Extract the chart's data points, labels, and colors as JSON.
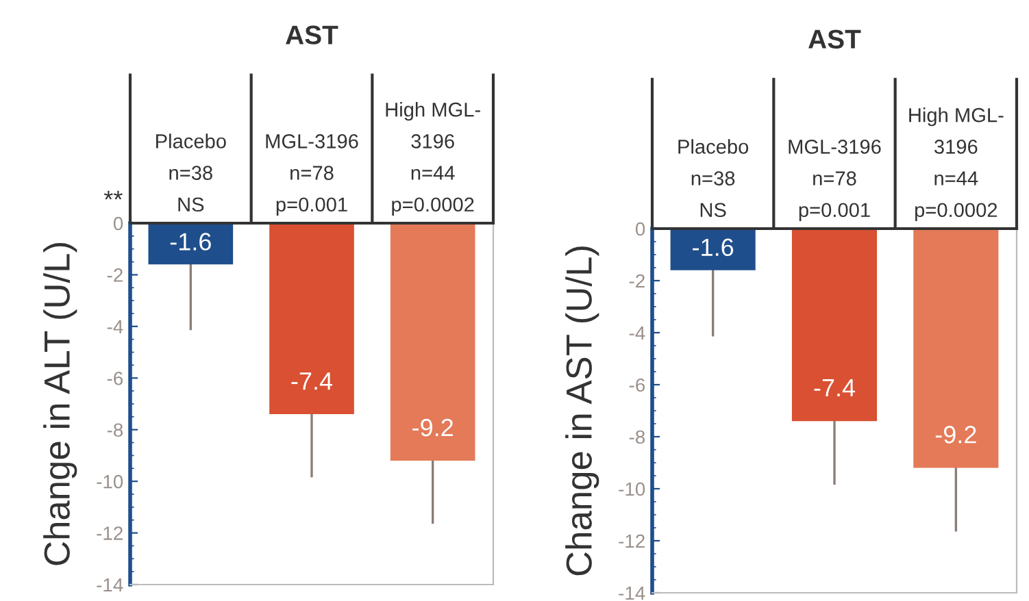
{
  "chart_data": [
    {
      "type": "bar",
      "title": "AST",
      "ylabel": "Change in ALT (U/L)",
      "categories": [
        "Placebo\nn=38\nNS",
        "MGL-3196\nn=78\np=0.001",
        "High MGL-\n3196\nn=44\np=0.0002"
      ],
      "values": [
        -1.6,
        -7.4,
        -9.2
      ],
      "colors": [
        "#1f4e8c",
        "#d95032",
        "#e47a58"
      ],
      "errors": [
        [
          -4.1,
          -1.6
        ],
        [
          -9.8,
          -7.4
        ],
        [
          -11.6,
          -9.2
        ]
      ],
      "ylim": [
        -14,
        0
      ],
      "yticks": [
        0,
        -2,
        -4,
        -6,
        -8,
        -10,
        -12,
        -14
      ],
      "grid": false,
      "data_labels": true,
      "annotations": [
        "**"
      ]
    },
    {
      "type": "bar",
      "title": "AST",
      "ylabel": "Change in AST (U/L)",
      "categories": [
        "Placebo\nn=38\nNS",
        "MGL-3196\nn=78\np=0.001",
        "High MGL-\n3196\nn=44\np=0.0002"
      ],
      "values": [
        -1.6,
        -7.4,
        -9.2
      ],
      "colors": [
        "#1f4e8c",
        "#d95032",
        "#e47a58"
      ],
      "errors": [
        [
          -4.1,
          -1.6
        ],
        [
          -9.8,
          -7.4
        ],
        [
          -11.6,
          -9.2
        ]
      ],
      "ylim": [
        -14,
        0
      ],
      "yticks": [
        0,
        -2,
        -4,
        -6,
        -8,
        -10,
        -12,
        -14
      ],
      "grid": false,
      "data_labels": true
    }
  ]
}
